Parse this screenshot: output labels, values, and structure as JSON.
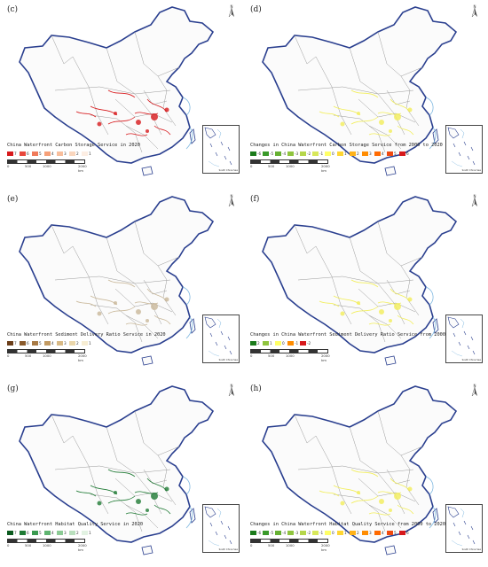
{
  "panels": [
    {
      "label": "(c)",
      "title": "China Waterfront Carbon Storage Service in 2020",
      "legend": [
        {
          "label": "7",
          "color": "#d7191c"
        },
        {
          "label": "6",
          "color": "#e8473b"
        },
        {
          "label": "5",
          "color": "#f07a5a"
        },
        {
          "label": "4",
          "color": "#f6a078"
        },
        {
          "label": "3",
          "color": "#f8be9c"
        },
        {
          "label": "2",
          "color": "#fad6bd"
        },
        {
          "label": "1",
          "color": "#fdeee3"
        }
      ],
      "overlay_color": "#d7191c"
    },
    {
      "label": "(d)",
      "title": "Changes in China Waterfront Carbon Storage Service from 2000 to 2020",
      "legend": [
        {
          "label": "-6",
          "color": "#1a7a1a"
        },
        {
          "label": "-5",
          "color": "#3a9a2a"
        },
        {
          "label": "-4",
          "color": "#66b032"
        },
        {
          "label": "-3",
          "color": "#8fc43e"
        },
        {
          "label": "-2",
          "color": "#b5d64a"
        },
        {
          "label": "-1",
          "color": "#d8e85a"
        },
        {
          "label": "0",
          "color": "#ffff66"
        },
        {
          "label": "1",
          "color": "#ffd633"
        },
        {
          "label": "2",
          "color": "#ffb21a"
        },
        {
          "label": "3",
          "color": "#ff8c00"
        },
        {
          "label": "4",
          "color": "#ff6a00"
        },
        {
          "label": "5",
          "color": "#f04a10"
        },
        {
          "label": "6",
          "color": "#d7191c"
        }
      ],
      "overlay_color": "#f2ee5a"
    },
    {
      "label": "(e)",
      "title": "China Waterfront Sediment Delivery Ratio Service in 2020",
      "legend": [
        {
          "label": "7",
          "color": "#6b3e1a"
        },
        {
          "label": "6",
          "color": "#8a5a2b"
        },
        {
          "label": "5",
          "color": "#a87a45"
        },
        {
          "label": "4",
          "color": "#c29a62"
        },
        {
          "label": "3",
          "color": "#d8b985"
        },
        {
          "label": "2",
          "color": "#ead6aa"
        },
        {
          "label": "1",
          "color": "#f7edd3"
        }
      ],
      "overlay_color": "#c9b89a"
    },
    {
      "label": "(f)",
      "title": "Changes in China Waterfront Sediment Delivery Ratio Service from 2000 to 2020",
      "legend": [
        {
          "label": "2",
          "color": "#1a7a1a"
        },
        {
          "label": "1",
          "color": "#8fc43e"
        },
        {
          "label": "0",
          "color": "#ffff66"
        },
        {
          "label": "-1",
          "color": "#ff8c00"
        },
        {
          "label": "-2",
          "color": "#d7191c"
        }
      ],
      "overlay_color": "#f2ee5a"
    },
    {
      "label": "(g)",
      "title": "China Waterfront Habitat Quality Service in 2020",
      "legend": [
        {
          "label": "7",
          "color": "#0b5a1e"
        },
        {
          "label": "6",
          "color": "#1f7a34"
        },
        {
          "label": "5",
          "color": "#3a9a50"
        },
        {
          "label": "4",
          "color": "#5fb470"
        },
        {
          "label": "3",
          "color": "#8ccb95"
        },
        {
          "label": "2",
          "color": "#b9dfbd"
        },
        {
          "label": "1",
          "color": "#e2f2e2"
        }
      ],
      "overlay_color": "#1f7a34"
    },
    {
      "label": "(h)",
      "title": "Changes in China Waterfront Habitat Quality Service from 2000 to 2020",
      "legend": [
        {
          "label": "-6",
          "color": "#1a7a1a"
        },
        {
          "label": "-5",
          "color": "#3a9a2a"
        },
        {
          "label": "-4",
          "color": "#66b032"
        },
        {
          "label": "-3",
          "color": "#8fc43e"
        },
        {
          "label": "-2",
          "color": "#b5d64a"
        },
        {
          "label": "-1",
          "color": "#d8e85a"
        },
        {
          "label": "0",
          "color": "#ffff66"
        },
        {
          "label": "1",
          "color": "#ffd633"
        },
        {
          "label": "2",
          "color": "#ffb21a"
        },
        {
          "label": "3",
          "color": "#ff8c00"
        },
        {
          "label": "4",
          "color": "#ff6a00"
        },
        {
          "label": "5",
          "color": "#f04a10"
        },
        {
          "label": "6",
          "color": "#d7191c"
        }
      ],
      "overlay_color": "#f2ee5a"
    }
  ],
  "scale_ticks": [
    "0",
    "500",
    "1000",
    "2000 km"
  ],
  "inset_label": "South China Sea",
  "colors": {
    "border_blue": "#2a3f8f",
    "province_gray": "#9a9a9a",
    "sea_blue": "#7fb8e0"
  }
}
